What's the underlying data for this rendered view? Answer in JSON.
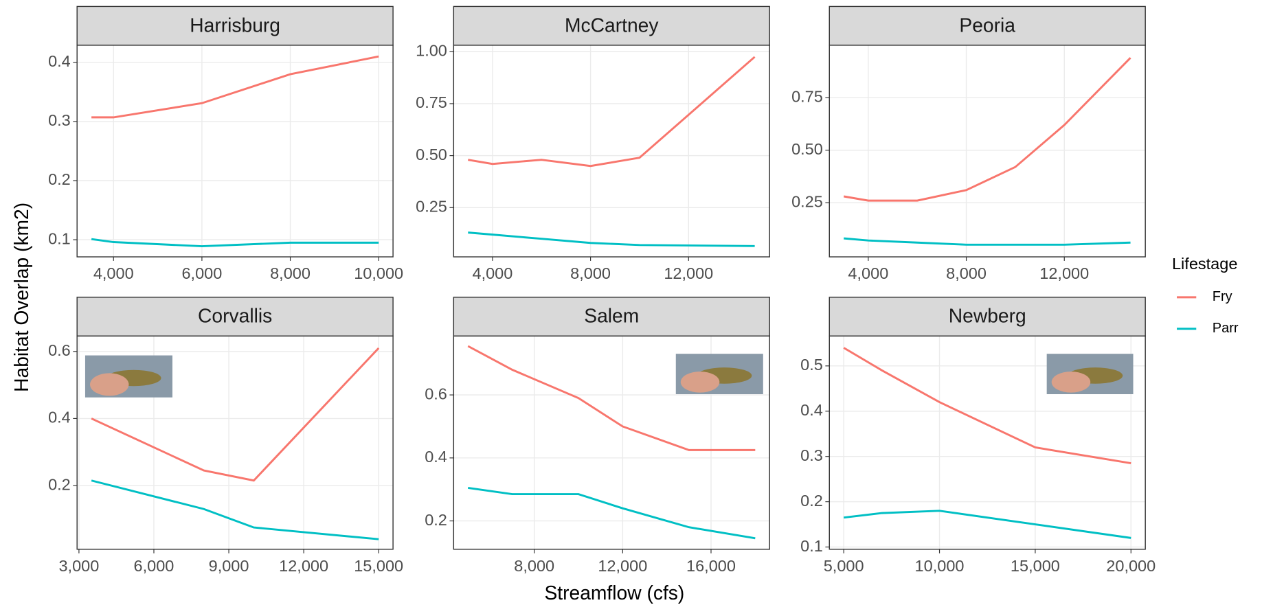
{
  "x_label": "Streamflow (cfs)",
  "y_label": "Habitat Overlap (km2)",
  "legend_title": "Lifestage",
  "chart_data": [
    {
      "type": "line",
      "title": "Harrisburg",
      "x": [
        3500,
        4000,
        6000,
        8000,
        10000
      ],
      "series": [
        {
          "name": "Fry",
          "color": "#F8766D",
          "values": [
            0.307,
            0.307,
            0.331,
            0.38,
            0.41
          ]
        },
        {
          "name": "Parr",
          "color": "#00BFC4",
          "values": [
            0.101,
            0.096,
            0.089,
            0.095,
            0.095
          ]
        }
      ],
      "xlim": [
        3175,
        10325
      ],
      "ylim": [
        0.071,
        0.429
      ],
      "xticks": [
        {
          "value": 4000,
          "label": "4,000"
        },
        {
          "value": 6000,
          "label": "6,000"
        },
        {
          "value": 8000,
          "label": "8,000"
        },
        {
          "value": 10000,
          "label": "10,000"
        }
      ],
      "yticks": [
        0.1,
        0.2,
        0.3,
        0.4
      ],
      "grid": true
    },
    {
      "type": "line",
      "title": "McCartney",
      "x": [
        3000,
        4000,
        6000,
        8000,
        10000,
        14700
      ],
      "series": [
        {
          "name": "Fry",
          "color": "#F8766D",
          "values": [
            0.48,
            0.46,
            0.48,
            0.45,
            0.49,
            0.975
          ]
        },
        {
          "name": "Parr",
          "color": "#00BFC4",
          "values": [
            0.13,
            0.12,
            0.1,
            0.08,
            0.07,
            0.065
          ]
        }
      ],
      "xlim": [
        2413,
        15306
      ],
      "ylim": [
        0.013,
        1.031
      ],
      "xticks": [
        {
          "value": 4000,
          "label": "4,000"
        },
        {
          "value": 8000,
          "label": "8,000"
        },
        {
          "value": 12000,
          "label": "12,000"
        }
      ],
      "yticks": [
        0.25,
        {
          "value": 0.5,
          "label": "0.50"
        },
        0.75,
        {
          "value": 1,
          "label": "1.00"
        }
      ],
      "grid": true
    },
    {
      "type": "line",
      "title": "Peoria",
      "x": [
        3000,
        4000,
        6000,
        8000,
        10000,
        12000,
        14700
      ],
      "series": [
        {
          "name": "Fry",
          "color": "#F8766D",
          "values": [
            0.28,
            0.26,
            0.26,
            0.31,
            0.42,
            0.62,
            0.94
          ]
        },
        {
          "name": "Parr",
          "color": "#00BFC4",
          "values": [
            0.08,
            0.07,
            0.06,
            0.05,
            0.05,
            0.05,
            0.06
          ]
        }
      ],
      "xlim": [
        2413,
        15306
      ],
      "ylim": [
        -0.008,
        1.0
      ],
      "xticks": [
        {
          "value": 4000,
          "label": "4,000"
        },
        {
          "value": 8000,
          "label": "8,000"
        },
        {
          "value": 12000,
          "label": "12,000"
        }
      ],
      "yticks": [
        0.25,
        {
          "value": 0.5,
          "label": "0.50"
        },
        0.75
      ],
      "grid": true
    },
    {
      "type": "line",
      "title": "Corvallis",
      "x": [
        3500,
        8000,
        10000,
        15000
      ],
      "series": [
        {
          "name": "Fry",
          "color": "#F8766D",
          "values": [
            0.4,
            0.245,
            0.215,
            0.61
          ]
        },
        {
          "name": "Parr",
          "color": "#00BFC4",
          "values": [
            0.215,
            0.13,
            0.075,
            0.04
          ]
        }
      ],
      "xlim": [
        2925,
        15575
      ],
      "ylim": [
        0.01,
        0.646
      ],
      "xticks": [
        {
          "value": 3000,
          "label": "3,000"
        },
        {
          "value": 6000,
          "label": "6,000"
        },
        {
          "value": 9000,
          "label": "9,000"
        },
        {
          "value": 12000,
          "label": "12,000"
        },
        {
          "value": 15000,
          "label": "15,000"
        }
      ],
      "yticks": [
        0.2,
        0.4,
        0.6
      ],
      "grid": true
    },
    {
      "type": "line",
      "title": "Salem",
      "x": [
        5000,
        7000,
        10000,
        12000,
        15000,
        18000
      ],
      "series": [
        {
          "name": "Fry",
          "color": "#F8766D",
          "values": [
            0.755,
            0.68,
            0.59,
            0.5,
            0.425,
            0.425
          ]
        },
        {
          "name": "Parr",
          "color": "#00BFC4",
          "values": [
            0.305,
            0.285,
            0.285,
            0.24,
            0.18,
            0.145
          ]
        }
      ],
      "xlim": [
        4350,
        18650
      ],
      "ylim": [
        0.11,
        0.787
      ],
      "xticks": [
        {
          "value": 8000,
          "label": "8,000"
        },
        {
          "value": 12000,
          "label": "12,000"
        },
        {
          "value": 16000,
          "label": "16,000"
        }
      ],
      "yticks": [
        0.2,
        0.4,
        0.6
      ],
      "grid": true
    },
    {
      "type": "line",
      "title": "Newberg",
      "x": [
        5000,
        7000,
        10000,
        15000,
        20000
      ],
      "series": [
        {
          "name": "Fry",
          "color": "#F8766D",
          "values": [
            0.54,
            0.49,
            0.42,
            0.32,
            0.285
          ]
        },
        {
          "name": "Parr",
          "color": "#00BFC4",
          "values": [
            0.165,
            0.175,
            0.18,
            0.15,
            0.12
          ]
        }
      ],
      "xlim": [
        4250,
        20750
      ],
      "ylim": [
        0.095,
        0.566
      ],
      "xticks": [
        {
          "value": 5000,
          "label": "5,000"
        },
        {
          "value": 10000,
          "label": "10,000"
        },
        {
          "value": 15000,
          "label": "15,000"
        },
        {
          "value": 20000,
          "label": "20,000"
        }
      ],
      "yticks": [
        0.1,
        0.2,
        0.3,
        0.4,
        0.5
      ],
      "grid": true
    }
  ]
}
